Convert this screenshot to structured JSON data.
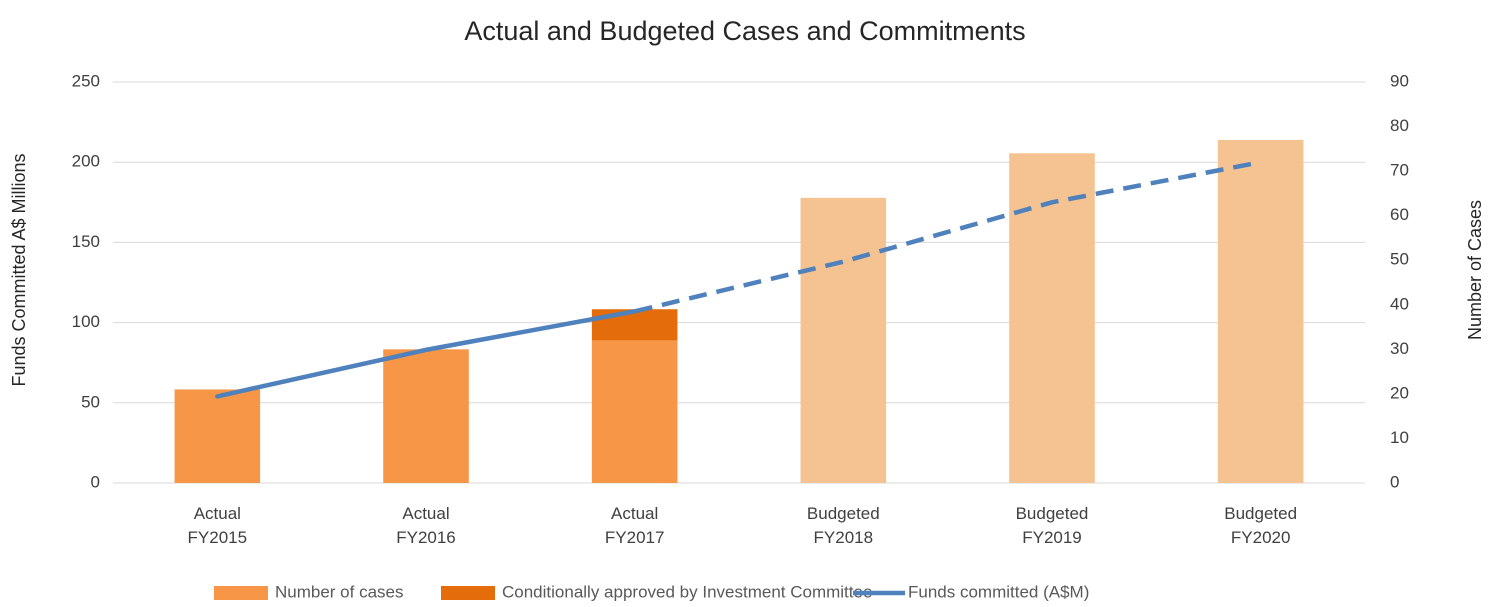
{
  "chart_data": {
    "type": "bar-line",
    "title": "Actual and Budgeted Cases and Commitments",
    "ylabel": "Funds Committed A$ Millions",
    "y2label": "Number of Cases",
    "categories": [
      [
        "Actual",
        "FY2015"
      ],
      [
        "Actual",
        "FY2016"
      ],
      [
        "Actual",
        "FY2017"
      ],
      [
        "Budgeted",
        "FY2018"
      ],
      [
        "Budgeted",
        "FY2019"
      ],
      [
        "Budgeted",
        "FY2020"
      ]
    ],
    "ylim": [
      0,
      250
    ],
    "yticks": [
      0,
      50,
      100,
      150,
      200,
      250
    ],
    "y2lim": [
      0,
      90
    ],
    "y2ticks": [
      0,
      10,
      20,
      30,
      40,
      50,
      60,
      70,
      80,
      90
    ],
    "grid": true,
    "legend": "bottom",
    "series": [
      {
        "name": "Number of cases",
        "type": "bar",
        "axis": "y2",
        "color": "#f79646",
        "colors": [
          "#f79646",
          "#f79646",
          "#f79646",
          "#f5c291",
          "#f5c291",
          "#f5c291"
        ],
        "values": [
          21,
          30,
          32,
          64,
          74,
          77
        ]
      },
      {
        "name": "Conditionally approved by Investment Committee",
        "type": "bar",
        "axis": "y2",
        "stacked": true,
        "color": "#e46c0a",
        "values": [
          null,
          null,
          7,
          null,
          null,
          null
        ]
      },
      {
        "name": "Funds committed (A$M)",
        "type": "line",
        "axis": "y",
        "color": "#4f81bd",
        "dash_start": 2,
        "values": [
          54,
          83,
          107,
          138,
          175,
          200
        ]
      }
    ]
  }
}
